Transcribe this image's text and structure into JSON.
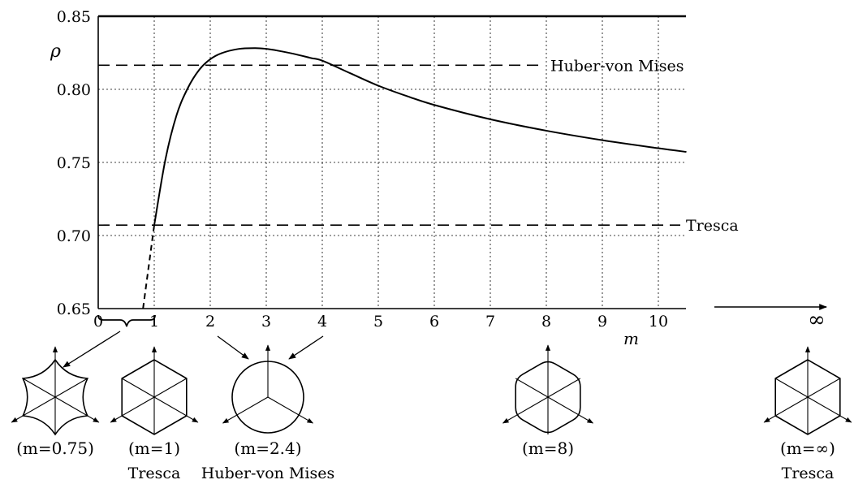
{
  "chart_data": {
    "type": "line",
    "ylabel": "ρ",
    "xlabel": "m",
    "xlim": [
      0,
      10.5
    ],
    "ylim": [
      0.65,
      0.85
    ],
    "x_ticks": [
      "0",
      "1",
      "2",
      "3",
      "4",
      "5",
      "6",
      "7",
      "8",
      "9",
      "10"
    ],
    "y_ticks": [
      "0.65",
      "0.70",
      "0.75",
      "0.80",
      "0.85"
    ],
    "grid": "dotted",
    "infinity_label": "∞",
    "series": [
      {
        "style": "solid",
        "x": [
          1.0,
          1.2,
          1.4,
          1.6,
          1.8,
          2.0,
          2.2,
          2.5,
          2.8,
          3.0,
          3.2,
          3.5,
          3.8,
          4.0,
          4.5,
          5.0,
          5.5,
          6.0,
          7.0,
          8.0,
          9.0,
          10.0,
          10.5
        ],
        "y": [
          0.7071,
          0.7521,
          0.7825,
          0.8009,
          0.8132,
          0.8206,
          0.8247,
          0.8276,
          0.8282,
          0.8277,
          0.8265,
          0.8242,
          0.8214,
          0.8196,
          0.811,
          0.8025,
          0.7955,
          0.7893,
          0.7795,
          0.7717,
          0.7652,
          0.7597,
          0.7572
        ]
      },
      {
        "style": "dashed",
        "x": [
          0.8,
          1.0
        ],
        "y": [
          0.65,
          0.7071
        ]
      }
    ],
    "reference_lines": [
      {
        "label": "Huber-von Mises",
        "y": 0.8165
      },
      {
        "label": "Tresca",
        "y": 0.7071
      }
    ]
  },
  "shapes": [
    {
      "label": "(m=0.75)",
      "sublabel": ""
    },
    {
      "label": "(m=1)",
      "sublabel": "Tresca"
    },
    {
      "label": "(m=2.4)",
      "sublabel": "Huber-von Mises"
    },
    {
      "label": "(m=8)",
      "sublabel": ""
    },
    {
      "label": "(m=∞)",
      "sublabel": "Tresca"
    }
  ]
}
